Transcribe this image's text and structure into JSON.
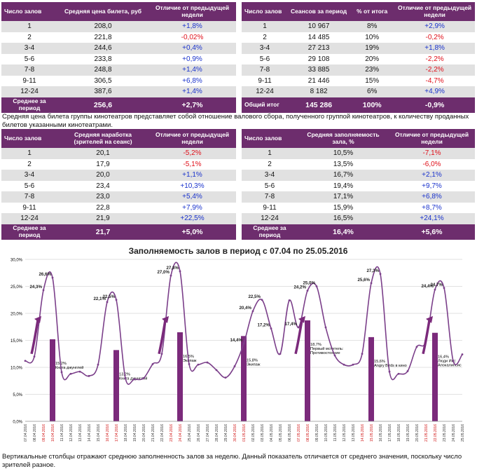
{
  "table1": {
    "headers": [
      "Число залов",
      "Средняя цена билета, руб",
      "Отличие от предыдущей недели"
    ],
    "rows": [
      {
        "group": "1",
        "value": "208,0",
        "diff": "+1,8%"
      },
      {
        "group": "2",
        "value": "221,8",
        "diff": "-0,02%"
      },
      {
        "group": "3-4",
        "value": "244,6",
        "diff": "+0,4%"
      },
      {
        "group": "5-6",
        "value": "233,8",
        "diff": "+0,9%"
      },
      {
        "group": "7-8",
        "value": "248,8",
        "diff": "+1,4%"
      },
      {
        "group": "9-11",
        "value": "306,5",
        "diff": "+6,8%"
      },
      {
        "group": "12-24",
        "value": "387,6",
        "diff": "+1,4%"
      }
    ],
    "footer": {
      "label": "Среднее за период",
      "value": "256,6",
      "diff": "+2,7%"
    }
  },
  "table2": {
    "headers": [
      "Число залов",
      "Сеансов за период",
      "% от итога",
      "Отличие от предыдущей недели"
    ],
    "rows": [
      {
        "group": "1",
        "value": "10 967",
        "share": "8%",
        "diff": "+2,9%"
      },
      {
        "group": "2",
        "value": "14 485",
        "share": "10%",
        "diff": "-0,2%"
      },
      {
        "group": "3-4",
        "value": "27 213",
        "share": "19%",
        "diff": "+1,8%"
      },
      {
        "group": "5-6",
        "value": "29 108",
        "share": "20%",
        "diff": "-2,2%"
      },
      {
        "group": "7-8",
        "value": "33 885",
        "share": "23%",
        "diff": "-2,2%"
      },
      {
        "group": "9-11",
        "value": "21 446",
        "share": "15%",
        "diff": "-4,7%"
      },
      {
        "group": "12-24",
        "value": "8 182",
        "share": "6%",
        "diff": "+4,9%"
      }
    ],
    "footer": {
      "label": "Общий итог",
      "value": "145 286",
      "share": "100%",
      "diff": "-0,9%"
    }
  },
  "note1": "Средняя цена билета группы кинотеатров представляет собой отношение валового сбора, полученного группой кинотеатров, к количеству проданных билетов указанными кинотеатрами.",
  "table3": {
    "headers": [
      "Число залов",
      "Средняя наработка (зрителей на сеанс)",
      "Отличие от предыдущей недели"
    ],
    "rows": [
      {
        "group": "1",
        "value": "20,1",
        "diff": "-5,2%"
      },
      {
        "group": "2",
        "value": "17,9",
        "diff": "-5,1%"
      },
      {
        "group": "3-4",
        "value": "20,0",
        "diff": "+1,1%"
      },
      {
        "group": "5-6",
        "value": "23,4",
        "diff": "+10,3%"
      },
      {
        "group": "7-8",
        "value": "23,0",
        "diff": "+5,4%"
      },
      {
        "group": "9-11",
        "value": "22,8",
        "diff": "+7,9%"
      },
      {
        "group": "12-24",
        "value": "21,9",
        "diff": "+22,5%"
      }
    ],
    "footer": {
      "label": "Среднее за период",
      "value": "21,7",
      "diff": "+5,0%"
    }
  },
  "table4": {
    "headers": [
      "Число залов",
      "Средняя заполняемость зала, %",
      "Отличие от предыдущей недели"
    ],
    "rows": [
      {
        "group": "1",
        "value": "10,5%",
        "diff": "-7,1%"
      },
      {
        "group": "2",
        "value": "13,5%",
        "diff": "-6,0%"
      },
      {
        "group": "3-4",
        "value": "16,7%",
        "diff": "+2,1%"
      },
      {
        "group": "5-6",
        "value": "19,4%",
        "diff": "+9,7%"
      },
      {
        "group": "7-8",
        "value": "17,1%",
        "diff": "+6,8%"
      },
      {
        "group": "9-11",
        "value": "15,9%",
        "diff": "+8,7%"
      },
      {
        "group": "12-24",
        "value": "16,5%",
        "diff": "+24,1%"
      }
    ],
    "footer": {
      "label": "Среднее за период",
      "value": "16,4%",
      "diff": "+5,6%"
    }
  },
  "chart_data": {
    "type": "line",
    "title": "Заполняемость залов в период с 07.04 по 25.05.2016",
    "ylim": [
      0,
      30
    ],
    "yticks": [
      "0,0%",
      "5,0%",
      "10,0%",
      "15,0%",
      "20,0%",
      "25,0%",
      "30,0%"
    ],
    "x": [
      "07.04.2016",
      "08.04.2016",
      "09.04.2016",
      "10.04.2016",
      "11.04.2016",
      "12.04.2016",
      "13.04.2016",
      "14.04.2016",
      "15.04.2016",
      "16.04.2016",
      "17.04.2016",
      "18.04.2016",
      "19.04.2016",
      "20.04.2016",
      "21.04.2016",
      "22.04.2016",
      "23.04.2016",
      "24.04.2016",
      "25.04.2016",
      "26.04.2016",
      "27.04.2016",
      "28.04.2016",
      "29.04.2016",
      "30.04.2016",
      "01.05.2016",
      "02.05.2016",
      "03.05.2016",
      "04.05.2016",
      "05.05.2016",
      "06.05.2016",
      "07.05.2016",
      "08.05.2016",
      "09.05.2016",
      "10.05.2016",
      "11.05.2016",
      "12.05.2016",
      "13.05.2016",
      "14.05.2016",
      "15.05.2016",
      "16.05.2016",
      "17.05.2016",
      "18.05.2016",
      "19.05.2016",
      "20.05.2016",
      "21.05.2016",
      "22.05.2016",
      "23.05.2016",
      "24.05.2016",
      "25.05.2016"
    ],
    "weekend_ticks": [
      2,
      3,
      9,
      10,
      16,
      17,
      23,
      24,
      30,
      31,
      37,
      38,
      44,
      45
    ],
    "series": [
      {
        "name": "Дневная заполняемость",
        "values": [
          11.2,
          12.0,
          24.3,
          26.6,
          9.1,
          8.8,
          9.2,
          8.4,
          10.5,
          22.1,
          22.5,
          8.0,
          7.8,
          8.0,
          10.6,
          12.5,
          27.0,
          27.8,
          10.6,
          10.5,
          10.9,
          9.5,
          8.1,
          10.2,
          14.4,
          20.4,
          22.5,
          17.2,
          12.5,
          22.4,
          17.4,
          24.2,
          25.0,
          17.4,
          12.2,
          10.5,
          10.5,
          12.5,
          25.6,
          27.3,
          9.2,
          8.8,
          9.3,
          13.8,
          14.8,
          24.4,
          24.7,
          11.2,
          12.4
        ]
      }
    ],
    "bars": [
      {
        "index": 3,
        "value": 15.2,
        "label": "15,2%",
        "film": "Книга джунглей"
      },
      {
        "index": 10,
        "value": 13.2,
        "label": "13,2%",
        "film": "Книга джунглей"
      },
      {
        "index": 17,
        "value": 16.5,
        "label": "16,5%",
        "film": "Экипаж"
      },
      {
        "index": 24,
        "value": 15.8,
        "label": "15,8%",
        "film": "Экипаж"
      },
      {
        "index": 31,
        "value": 18.7,
        "label": "18,7%",
        "film": "Первый мститель: Противостояние"
      },
      {
        "index": 38,
        "value": 15.6,
        "label": "15,6%",
        "film": "Angry Birds в кино"
      },
      {
        "index": 45,
        "value": 16.4,
        "label": "16,4%",
        "film": "Люди Икс: Апокалипсис"
      }
    ],
    "point_labels": [
      {
        "index": 2,
        "text": "24,3%"
      },
      {
        "index": 3,
        "text": "26,6%"
      },
      {
        "index": 9,
        "text": "22,1%"
      },
      {
        "index": 10,
        "text": "22,5%"
      },
      {
        "index": 16,
        "text": "27,0%"
      },
      {
        "index": 17,
        "text": "27,8%"
      },
      {
        "index": 24,
        "text": "14,4%"
      },
      {
        "index": 25,
        "text": "20,4%"
      },
      {
        "index": 26,
        "text": "22,5%"
      },
      {
        "index": 27,
        "text": "17,2%"
      },
      {
        "index": 30,
        "text": "17,4%"
      },
      {
        "index": 31,
        "text": "24,2%"
      },
      {
        "index": 32,
        "text": "25,0%"
      },
      {
        "index": 38,
        "text": "25,6%"
      },
      {
        "index": 39,
        "text": "27,3%"
      },
      {
        "index": 45,
        "text": "24,4%"
      },
      {
        "index": 46,
        "text": "24,7%"
      }
    ],
    "arrows_at": [
      2,
      16,
      31,
      45
    ],
    "colors": {
      "line": "#7b3f8a",
      "bar": "#7b2a7b",
      "arrow": "#7b2a7b",
      "weekend": "#d01010",
      "grid": "#d9d9d9"
    }
  },
  "note2": "Вертикальные столбцы отражают среднюю заполненность залов за неделю. Данный показатель отличается от среднего значения, поскольку число зрителей разное."
}
